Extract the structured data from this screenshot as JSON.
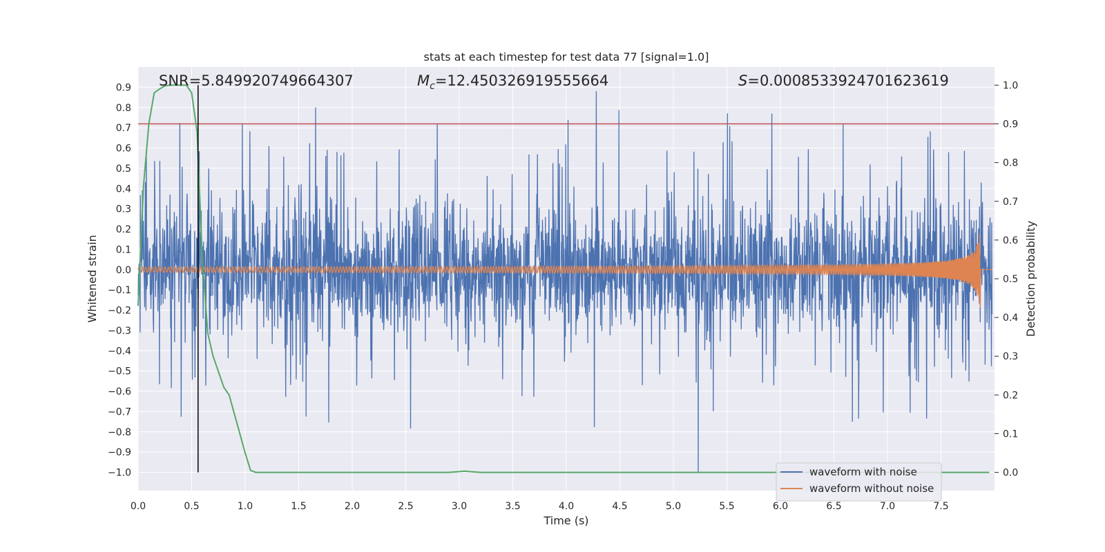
{
  "chart_data": {
    "type": "line",
    "title": "stats at each timestep for test data 77 [signal=1.0]",
    "xlabel": "Time (s)",
    "ylabel": "Whitened strain",
    "y2label": "Detection probability",
    "xlim": [
      0.0,
      8.0
    ],
    "ylim": [
      -1.09,
      1.0
    ],
    "y2lim": [
      -0.047,
      1.047
    ],
    "xticks": [
      "0.0",
      "0.5",
      "1.0",
      "1.5",
      "2.0",
      "2.5",
      "3.0",
      "3.5",
      "4.0",
      "4.5",
      "5.0",
      "5.5",
      "6.0",
      "6.5",
      "7.0",
      "7.5"
    ],
    "yticks": [
      "0.9",
      "0.8",
      "0.7",
      "0.6",
      "0.5",
      "0.4",
      "0.3",
      "0.2",
      "0.1",
      "0.0",
      "-0.1",
      "-0.2",
      "-0.3",
      "-0.4",
      "-0.5",
      "-0.6",
      "-0.7",
      "-0.8",
      "-0.9",
      "-1.0"
    ],
    "y2ticks": [
      "1.0",
      "0.9",
      "0.8",
      "0.7",
      "0.6",
      "0.5",
      "0.4",
      "0.3",
      "0.2",
      "0.1",
      "0.0"
    ],
    "grid": true,
    "legend_position": "lower-right",
    "annotations": {
      "snr": "SNR=5.849920749664307",
      "mc_prefix": "M",
      "mc_sub": "c",
      "mc_value": "=12.450326919555664",
      "s_prefix": "S",
      "s_value": "=0.0008533924701623619"
    },
    "series": [
      {
        "name": "waveform with noise",
        "color": "#4c72b0",
        "axis": "left",
        "description_stats": {
          "typical_envelope": 0.32,
          "peak_max": 0.88,
          "peak_min": -1.0,
          "duration": 7.98
        }
      },
      {
        "name": "waveform without noise",
        "color": "#dd8452",
        "axis": "left",
        "chirp_end_time": 7.87,
        "peak_amplitude": 0.2
      },
      {
        "name": "detection probability",
        "color": "#55a868",
        "axis": "right",
        "x": [
          0.0,
          0.05,
          0.1,
          0.15,
          0.2,
          0.25,
          0.3,
          0.35,
          0.4,
          0.45,
          0.5,
          0.55,
          0.6,
          0.65,
          0.7,
          0.75,
          0.8,
          0.85,
          0.9,
          0.95,
          1.0,
          1.05,
          1.1,
          1.15,
          1.5,
          2.0,
          2.5,
          2.9,
          3.05,
          3.2,
          4.0,
          5.0,
          6.0,
          7.0,
          7.95
        ],
        "y": [
          0.43,
          0.74,
          0.9,
          0.98,
          0.99,
          0.998,
          1.0,
          1.0,
          1.0,
          1.0,
          0.98,
          0.88,
          0.55,
          0.36,
          0.3,
          0.26,
          0.22,
          0.2,
          0.15,
          0.1,
          0.05,
          0.005,
          0.0,
          0.0,
          0.0,
          0.0,
          0.0,
          0.0,
          0.003,
          0.0,
          0.0,
          0.0,
          0.0,
          0.0,
          0.0
        ]
      }
    ],
    "threshold_line": {
      "value": 0.9,
      "axis": "right",
      "color": "#c44e52"
    },
    "vertical_marker": {
      "x": 0.56,
      "color": "#000000"
    },
    "axes_facecolor": "#eaeaf2",
    "grid_color": "#ffffff"
  }
}
